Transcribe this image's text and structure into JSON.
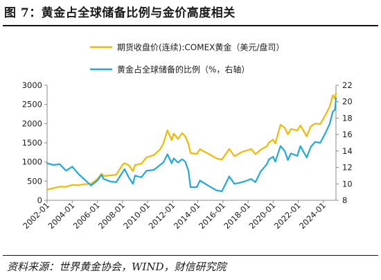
{
  "figure": {
    "title": "图 7：黄金占全球储备比例与金价高度相关",
    "source": "资料来源：世界黄金协会，WIND，财信研究院"
  },
  "colors": {
    "price": "#F5B800",
    "ratio": "#1FA8E0"
  },
  "chart_data": {
    "type": "line",
    "title": "",
    "x_tick_labels": [
      "2002-01",
      "2004-01",
      "2006-01",
      "2008-01",
      "2010-01",
      "2012-01",
      "2014-01",
      "2016-01",
      "2018-01",
      "2020-01",
      "2022-01",
      "2024-01"
    ],
    "y_left": {
      "ylim": [
        0,
        3000
      ],
      "ticks": [
        0,
        500,
        1000,
        1500,
        2000,
        2500,
        3000
      ]
    },
    "y_right": {
      "ylim": [
        8,
        22
      ],
      "ticks": [
        8,
        10,
        12,
        14,
        16,
        18,
        20,
        22
      ]
    },
    "legend_position": "top",
    "series": [
      {
        "name": "期货收盘价(连续):COMEX黄金（美元/盘司）",
        "axis": "left",
        "color": "#F5B800",
        "points": [
          [
            "2002-01",
            282
          ],
          [
            "2002-07",
            314
          ],
          [
            "2003-01",
            356
          ],
          [
            "2003-07",
            350
          ],
          [
            "2004-01",
            403
          ],
          [
            "2004-07",
            392
          ],
          [
            "2005-01",
            422
          ],
          [
            "2005-07",
            429
          ],
          [
            "2006-01",
            555
          ],
          [
            "2006-05",
            692
          ],
          [
            "2006-07",
            632
          ],
          [
            "2007-01",
            650
          ],
          [
            "2007-07",
            666
          ],
          [
            "2008-01",
            923
          ],
          [
            "2008-03",
            968
          ],
          [
            "2008-07",
            915
          ],
          [
            "2008-11",
            760
          ],
          [
            "2009-01",
            919
          ],
          [
            "2009-07",
            953
          ],
          [
            "2009-12",
            1120
          ],
          [
            "2010-07",
            1180
          ],
          [
            "2011-01",
            1330
          ],
          [
            "2011-04",
            1480
          ],
          [
            "2011-08",
            1825
          ],
          [
            "2011-12",
            1570
          ],
          [
            "2012-02",
            1740
          ],
          [
            "2012-06",
            1600
          ],
          [
            "2012-10",
            1750
          ],
          [
            "2013-01",
            1670
          ],
          [
            "2013-04",
            1470
          ],
          [
            "2013-06",
            1230
          ],
          [
            "2013-12",
            1210
          ],
          [
            "2014-03",
            1330
          ],
          [
            "2014-12",
            1200
          ],
          [
            "2015-07",
            1090
          ],
          [
            "2015-12",
            1060
          ],
          [
            "2016-07",
            1340
          ],
          [
            "2016-12",
            1150
          ],
          [
            "2017-07",
            1260
          ],
          [
            "2017-12",
            1300
          ],
          [
            "2018-04",
            1340
          ],
          [
            "2018-08",
            1200
          ],
          [
            "2019-01",
            1320
          ],
          [
            "2019-07",
            1410
          ],
          [
            "2019-09",
            1510
          ],
          [
            "2020-01",
            1580
          ],
          [
            "2020-03",
            1480
          ],
          [
            "2020-08",
            1970
          ],
          [
            "2020-12",
            1890
          ],
          [
            "2021-03",
            1720
          ],
          [
            "2021-06",
            1860
          ],
          [
            "2021-12",
            1820
          ],
          [
            "2022-03",
            1950
          ],
          [
            "2022-09",
            1670
          ],
          [
            "2023-01",
            1930
          ],
          [
            "2023-05",
            2000
          ],
          [
            "2023-10",
            1990
          ],
          [
            "2024-03",
            2230
          ],
          [
            "2024-07",
            2440
          ],
          [
            "2024-10",
            2740
          ],
          [
            "2024-12",
            2650
          ],
          [
            "2025-01",
            2800
          ]
        ]
      },
      {
        "name": "黄金占全球储备的比例（%，右轴）",
        "axis": "right",
        "color": "#1FA8E0",
        "points": [
          [
            "2002-01",
            12.5
          ],
          [
            "2002-07",
            12.3
          ],
          [
            "2003-01",
            12.4
          ],
          [
            "2003-07",
            11.6
          ],
          [
            "2004-01",
            12.1
          ],
          [
            "2004-07",
            11.2
          ],
          [
            "2005-01",
            10.5
          ],
          [
            "2005-07",
            9.8
          ],
          [
            "2006-01",
            10.4
          ],
          [
            "2006-05",
            11.1
          ],
          [
            "2006-07",
            10.6
          ],
          [
            "2007-01",
            10.3
          ],
          [
            "2007-07",
            10.2
          ],
          [
            "2008-01",
            11.4
          ],
          [
            "2008-03",
            11.8
          ],
          [
            "2008-07",
            10.8
          ],
          [
            "2008-11",
            10.0
          ],
          [
            "2009-01",
            11.0
          ],
          [
            "2009-07",
            10.8
          ],
          [
            "2009-12",
            11.6
          ],
          [
            "2010-07",
            11.7
          ],
          [
            "2011-01",
            12.3
          ],
          [
            "2011-04",
            12.6
          ],
          [
            "2011-08",
            13.6
          ],
          [
            "2011-12",
            12.5
          ],
          [
            "2012-02",
            13.1
          ],
          [
            "2012-06",
            12.6
          ],
          [
            "2012-10",
            13.0
          ],
          [
            "2013-01",
            12.7
          ],
          [
            "2013-04",
            11.6
          ],
          [
            "2013-06",
            9.6
          ],
          [
            "2013-12",
            9.6
          ],
          [
            "2014-03",
            10.4
          ],
          [
            "2014-12",
            9.7
          ],
          [
            "2015-07",
            9.2
          ],
          [
            "2015-12",
            9.1
          ],
          [
            "2016-07",
            10.9
          ],
          [
            "2016-12",
            10.0
          ],
          [
            "2017-07",
            10.2
          ],
          [
            "2017-12",
            10.4
          ],
          [
            "2018-04",
            10.6
          ],
          [
            "2018-08",
            10.2
          ],
          [
            "2019-01",
            11.5
          ],
          [
            "2019-07",
            12.4
          ],
          [
            "2019-09",
            13.0
          ],
          [
            "2020-01",
            13.3
          ],
          [
            "2020-03",
            12.7
          ],
          [
            "2020-08",
            14.6
          ],
          [
            "2020-12",
            14.0
          ],
          [
            "2021-03",
            12.9
          ],
          [
            "2021-06",
            13.7
          ],
          [
            "2021-12",
            13.4
          ],
          [
            "2022-03",
            14.6
          ],
          [
            "2022-09",
            13.2
          ],
          [
            "2023-01",
            14.5
          ],
          [
            "2023-05",
            15.1
          ],
          [
            "2023-10",
            15.0
          ],
          [
            "2024-03",
            16.2
          ],
          [
            "2024-07",
            17.3
          ],
          [
            "2024-10",
            18.8
          ],
          [
            "2024-12",
            19.0
          ],
          [
            "2025-01",
            20.4
          ]
        ]
      }
    ]
  }
}
